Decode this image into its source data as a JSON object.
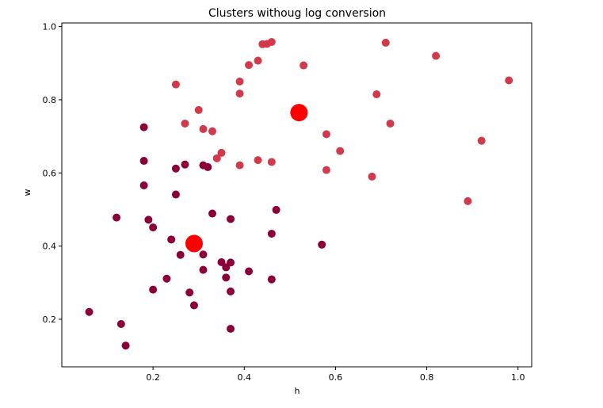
{
  "chart_data": {
    "type": "scatter",
    "title": "Clusters withoug log conversion",
    "xlabel": "h",
    "ylabel": "w",
    "xlim": [
      0.0,
      1.03
    ],
    "ylim": [
      0.07,
      1.01
    ],
    "xticks": [
      0.2,
      0.4,
      0.6,
      0.8,
      1.0
    ],
    "xtick_labels": [
      "0.2",
      "0.4",
      "0.6",
      "0.8",
      "1.0"
    ],
    "yticks": [
      0.2,
      0.4,
      0.6,
      0.8,
      1.0
    ],
    "ytick_labels": [
      "0.2",
      "0.4",
      "0.6",
      "0.8",
      "1.0"
    ],
    "grid": false,
    "colors": {
      "cluster_low": "#8b0038",
      "cluster_high": "#d13a4a",
      "centroid": "#ff0000"
    },
    "series": [
      {
        "color_key": "cluster_low",
        "points": [
          [
            0.06,
            0.22
          ],
          [
            0.13,
            0.187
          ],
          [
            0.14,
            0.128
          ],
          [
            0.12,
            0.478
          ],
          [
            0.18,
            0.725
          ],
          [
            0.18,
            0.633
          ],
          [
            0.18,
            0.566
          ],
          [
            0.19,
            0.472
          ],
          [
            0.2,
            0.451
          ],
          [
            0.2,
            0.281
          ],
          [
            0.24,
            0.418
          ],
          [
            0.23,
            0.311
          ],
          [
            0.25,
            0.612
          ],
          [
            0.25,
            0.541
          ],
          [
            0.26,
            0.376
          ],
          [
            0.27,
            0.623
          ],
          [
            0.28,
            0.273
          ],
          [
            0.29,
            0.238
          ],
          [
            0.31,
            0.621
          ],
          [
            0.32,
            0.616
          ],
          [
            0.31,
            0.377
          ],
          [
            0.31,
            0.335
          ],
          [
            0.33,
            0.489
          ],
          [
            0.35,
            0.356
          ],
          [
            0.36,
            0.342
          ],
          [
            0.36,
            0.314
          ],
          [
            0.37,
            0.355
          ],
          [
            0.37,
            0.474
          ],
          [
            0.37,
            0.276
          ],
          [
            0.37,
            0.174
          ],
          [
            0.41,
            0.331
          ],
          [
            0.46,
            0.434
          ],
          [
            0.47,
            0.499
          ],
          [
            0.46,
            0.309
          ],
          [
            0.57,
            0.404
          ]
        ]
      },
      {
        "color_key": "cluster_high",
        "points": [
          [
            0.25,
            0.842
          ],
          [
            0.27,
            0.735
          ],
          [
            0.3,
            0.772
          ],
          [
            0.31,
            0.72
          ],
          [
            0.33,
            0.714
          ],
          [
            0.34,
            0.64
          ],
          [
            0.35,
            0.655
          ],
          [
            0.39,
            0.817
          ],
          [
            0.39,
            0.85
          ],
          [
            0.39,
            0.621
          ],
          [
            0.41,
            0.895
          ],
          [
            0.43,
            0.635
          ],
          [
            0.43,
            0.907
          ],
          [
            0.44,
            0.952
          ],
          [
            0.45,
            0.953
          ],
          [
            0.46,
            0.958
          ],
          [
            0.46,
            0.63
          ],
          [
            0.53,
            0.894
          ],
          [
            0.58,
            0.706
          ],
          [
            0.58,
            0.608
          ],
          [
            0.61,
            0.66
          ],
          [
            0.68,
            0.59
          ],
          [
            0.69,
            0.815
          ],
          [
            0.71,
            0.956
          ],
          [
            0.72,
            0.735
          ],
          [
            0.82,
            0.92
          ],
          [
            0.89,
            0.523
          ],
          [
            0.92,
            0.688
          ],
          [
            0.98,
            0.853
          ]
        ]
      },
      {
        "color_key": "centroid",
        "points": [
          [
            0.29,
            0.407
          ],
          [
            0.52,
            0.765
          ]
        ]
      }
    ]
  }
}
